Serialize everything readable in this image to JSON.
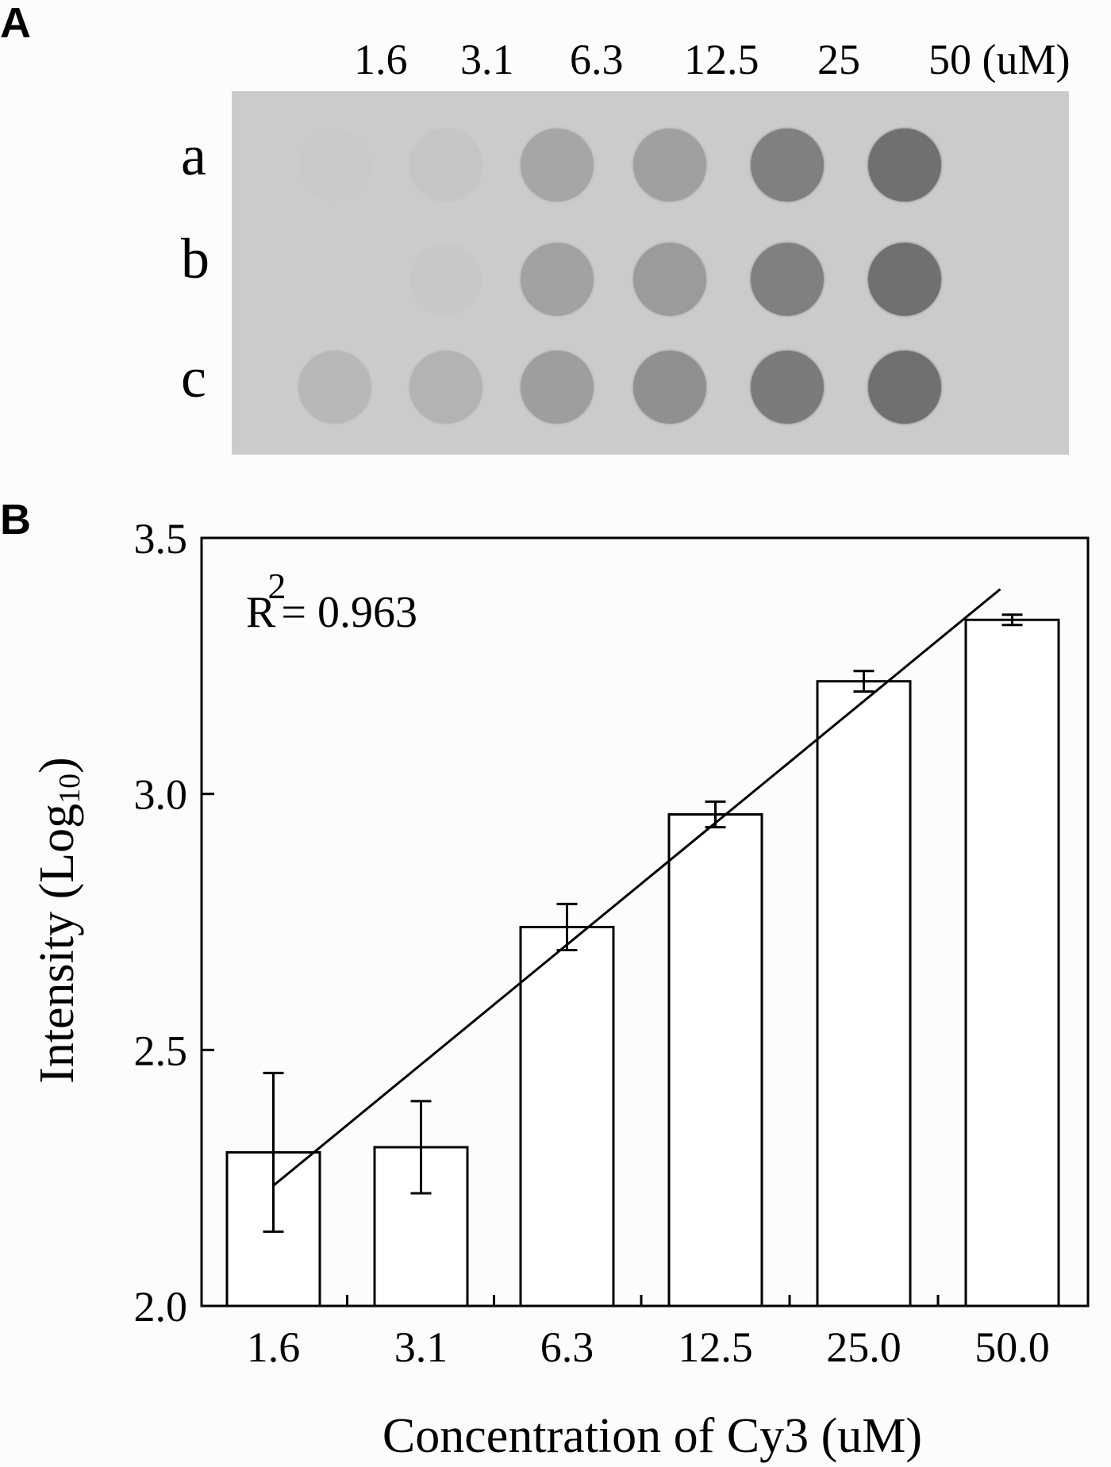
{
  "panel_a": {
    "label": "A",
    "concentration_labels": [
      "1.6",
      "3.1",
      "6.3",
      "12.5",
      "25",
      "50 (uM)"
    ],
    "row_labels": [
      "a",
      "b",
      "c"
    ],
    "spot_intensity_grid": {
      "a": [
        0.02,
        0.06,
        0.35,
        0.4,
        0.7,
        0.85
      ],
      "b": [
        0.0,
        0.03,
        0.38,
        0.45,
        0.7,
        0.85
      ],
      "c": [
        0.18,
        0.22,
        0.42,
        0.55,
        0.75,
        0.85
      ]
    },
    "membrane_color": "#cbcbcb",
    "spot_color_max": "#606060"
  },
  "panel_b": {
    "label": "B",
    "annotation": "R",
    "annotation_sup": "2",
    "annotation_value": "= 0.963"
  },
  "chart_data": {
    "type": "bar",
    "title": "",
    "xlabel": "Concentration of Cy3 (uM)",
    "ylabel": "Intensity (Log10)",
    "ylabel_main": "Intensity (Log",
    "ylabel_sub": "10",
    "ylabel_close": ")",
    "categories": [
      "1.6",
      "3.1",
      "6.3",
      "12.5",
      "25.0",
      "50.0"
    ],
    "values": [
      2.3,
      2.31,
      2.74,
      2.96,
      3.22,
      3.34
    ],
    "error_bars": [
      0.155,
      0.09,
      0.045,
      0.025,
      0.02,
      0.01
    ],
    "yticks": [
      "2.0",
      "2.5",
      "3.0",
      "3.5"
    ],
    "ylim": [
      2.0,
      3.5
    ],
    "grid": false,
    "legend": null,
    "trendline": {
      "type": "linear",
      "r_squared": 0.963,
      "x_start_index": 0,
      "x_end_index": 5,
      "y_start": 2.235,
      "y_end": 3.4
    },
    "bar_fill": "#ffffff",
    "bar_stroke": "#000000"
  }
}
